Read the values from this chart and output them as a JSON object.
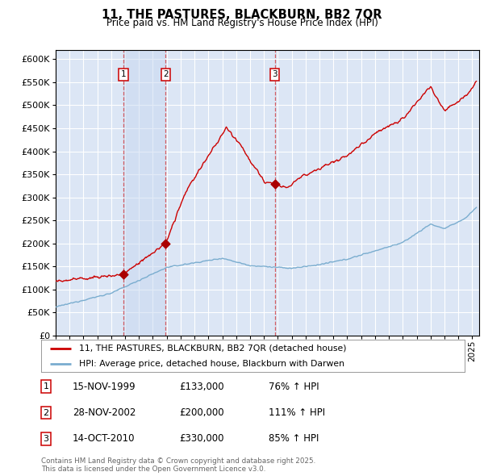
{
  "title": "11, THE PASTURES, BLACKBURN, BB2 7QR",
  "subtitle": "Price paid vs. HM Land Registry's House Price Index (HPI)",
  "xlim": [
    1995,
    2025.5
  ],
  "ylim": [
    0,
    620000
  ],
  "yticks": [
    0,
    50000,
    100000,
    150000,
    200000,
    250000,
    300000,
    350000,
    400000,
    450000,
    500000,
    550000,
    600000
  ],
  "ytick_labels": [
    "£0",
    "£50K",
    "£100K",
    "£150K",
    "£200K",
    "£250K",
    "£300K",
    "£350K",
    "£400K",
    "£450K",
    "£500K",
    "£550K",
    "£600K"
  ],
  "xticks": [
    1995,
    1996,
    1997,
    1998,
    1999,
    2000,
    2001,
    2002,
    2003,
    2004,
    2005,
    2006,
    2007,
    2008,
    2009,
    2010,
    2011,
    2012,
    2013,
    2014,
    2015,
    2016,
    2017,
    2018,
    2019,
    2020,
    2021,
    2022,
    2023,
    2024,
    2025
  ],
  "plot_bg_color": "#dce6f5",
  "grid_color": "#ffffff",
  "red_line_color": "#cc0000",
  "blue_line_color": "#7aadcf",
  "vline_color": "#cc0000",
  "sale_dot_color": "#aa0000",
  "purchase_dates": [
    1999.88,
    2002.91,
    2010.79
  ],
  "purchase_prices": [
    133000,
    200000,
    330000
  ],
  "purchase_labels": [
    "1",
    "2",
    "3"
  ],
  "shade_regions": [
    [
      1999.88,
      2002.91
    ]
  ],
  "shade_color": "#c8d8f0",
  "legend_line1": "11, THE PASTURES, BLACKBURN, BB2 7QR (detached house)",
  "legend_line2": "HPI: Average price, detached house, Blackburn with Darwen",
  "table_entries": [
    {
      "label": "1",
      "date": "15-NOV-1999",
      "price": "£133,000",
      "change": "76% ↑ HPI"
    },
    {
      "label": "2",
      "date": "28-NOV-2002",
      "price": "£200,000",
      "change": "111% ↑ HPI"
    },
    {
      "label": "3",
      "date": "14-OCT-2010",
      "price": "£330,000",
      "change": "85% ↑ HPI"
    }
  ],
  "footnote": "Contains HM Land Registry data © Crown copyright and database right 2025.\nThis data is licensed under the Open Government Licence v3.0."
}
